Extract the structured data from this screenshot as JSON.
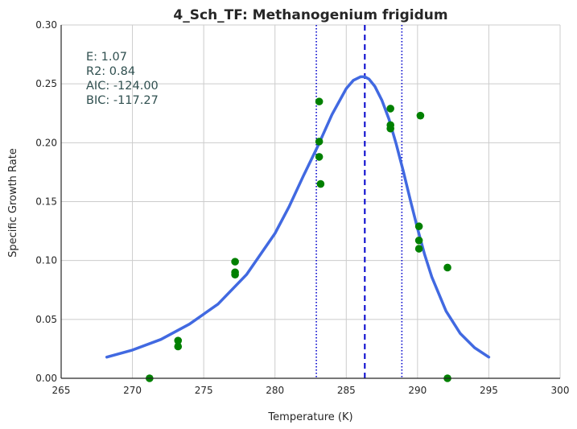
{
  "chart_data": {
    "type": "scatter",
    "title": "4_Sch_TF: Methanogenium frigidum",
    "xlabel": "Temperature (K)",
    "ylabel": "Specific Growth Rate",
    "xlim": [
      265,
      300
    ],
    "ylim": [
      0,
      0.3
    ],
    "x_ticks": [
      265,
      270,
      275,
      280,
      285,
      290,
      295,
      300
    ],
    "x_tick_labels": [
      "265",
      "270",
      "275",
      "280",
      "285",
      "290",
      "295",
      "300"
    ],
    "y_ticks": [
      0,
      0.05,
      0.1,
      0.15,
      0.2,
      0.25,
      0.3
    ],
    "y_tick_labels": [
      "0.00",
      "0.05",
      "0.10",
      "0.15",
      "0.20",
      "0.25",
      "0.30"
    ],
    "grid": true,
    "stats": [
      {
        "text": "E:  1.07"
      },
      {
        "text": "R2:  0.84"
      },
      {
        "text": "AIC: -124.00"
      },
      {
        "text": "BIC: -117.27"
      }
    ],
    "points": {
      "color": "#008000",
      "x": [
        271.2,
        273.2,
        273.2,
        277.2,
        277.2,
        277.2,
        283.1,
        283.1,
        283.1,
        283.2,
        288.1,
        288.1,
        288.1,
        290.1,
        290.1,
        290.1,
        290.2,
        292.1,
        292.1
      ],
      "y": [
        0.0,
        0.032,
        0.027,
        0.099,
        0.09,
        0.088,
        0.235,
        0.201,
        0.188,
        0.165,
        0.229,
        0.215,
        0.212,
        0.129,
        0.117,
        0.11,
        0.223,
        0.094,
        0.0
      ]
    },
    "fit_curve": {
      "color": "#4169e1",
      "x": [
        268.2,
        270,
        272,
        274,
        276,
        278,
        280,
        281,
        282,
        283,
        284,
        285,
        285.5,
        286,
        286.3,
        286.6,
        287,
        287.5,
        288,
        288.5,
        289,
        289.5,
        290,
        290.5,
        291,
        292,
        293,
        294,
        295
      ],
      "y": [
        0.018,
        0.024,
        0.033,
        0.046,
        0.063,
        0.088,
        0.123,
        0.146,
        0.172,
        0.197,
        0.224,
        0.246,
        0.253,
        0.256,
        0.256,
        0.254,
        0.248,
        0.236,
        0.22,
        0.199,
        0.176,
        0.151,
        0.127,
        0.105,
        0.086,
        0.057,
        0.038,
        0.026,
        0.018
      ]
    },
    "vlines": [
      {
        "x": 286.3,
        "style": "dashed",
        "color": "#0000cd"
      },
      {
        "x": 282.9,
        "style": "dotted",
        "color": "#0000cd"
      },
      {
        "x": 288.9,
        "style": "dotted",
        "color": "#0000cd"
      }
    ],
    "stats_color": "#2f4f4f"
  }
}
